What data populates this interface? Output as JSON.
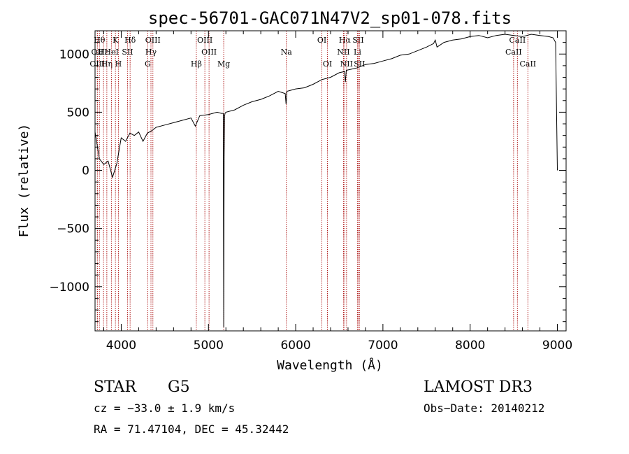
{
  "chart_data": {
    "type": "line",
    "title": "spec-56701-GAC071N47V2_sp01-078.fits",
    "xlabel": "Wavelength (Å)",
    "ylabel": "Flux (relative)",
    "xlim": [
      3700,
      9100
    ],
    "ylim": [
      -1380,
      1200
    ],
    "xticks": [
      4000,
      5000,
      6000,
      7000,
      8000,
      9000
    ],
    "xtick_labels": [
      "4000",
      "5000",
      "6000",
      "7000",
      "8000",
      "9000"
    ],
    "yticks": [
      -1000,
      -500,
      0,
      500,
      1000
    ],
    "ytick_labels": [
      "−1000",
      "−500",
      "0",
      "500",
      "1000"
    ],
    "line_color": "#000000",
    "marker_color": "#b22222",
    "spectrum": {
      "x": [
        3700,
        3750,
        3800,
        3850,
        3900,
        3950,
        4000,
        4050,
        4100,
        4150,
        4200,
        4250,
        4300,
        4350,
        4400,
        4500,
        4600,
        4700,
        4800,
        4850,
        4900,
        5000,
        5100,
        5150,
        5170,
        5175,
        5180,
        5185,
        5190,
        5200,
        5300,
        5400,
        5500,
        5600,
        5700,
        5800,
        5880,
        5890,
        5900,
        6000,
        6100,
        6200,
        6300,
        6400,
        6500,
        6560,
        6570,
        6580,
        6700,
        6800,
        6900,
        7000,
        7100,
        7200,
        7300,
        7400,
        7500,
        7580,
        7600,
        7620,
        7700,
        7800,
        7900,
        8000,
        8100,
        8200,
        8300,
        8400,
        8500,
        8600,
        8700,
        8800,
        8900,
        8950,
        8980,
        9000
      ],
      "y": [
        330,
        100,
        50,
        80,
        -60,
        60,
        280,
        250,
        320,
        300,
        330,
        250,
        320,
        340,
        370,
        390,
        410,
        430,
        450,
        380,
        470,
        480,
        500,
        490,
        490,
        -1350,
        100,
        470,
        490,
        500,
        520,
        560,
        590,
        610,
        640,
        680,
        660,
        570,
        680,
        700,
        710,
        740,
        780,
        800,
        840,
        850,
        760,
        860,
        880,
        910,
        920,
        940,
        960,
        990,
        1000,
        1030,
        1060,
        1090,
        1120,
        1060,
        1100,
        1120,
        1130,
        1150,
        1160,
        1140,
        1160,
        1170,
        1160,
        1150,
        1170,
        1160,
        1150,
        1140,
        1100,
        0
      ]
    },
    "line_markers": [
      {
        "wavelength": 3750,
        "label": "Hθ",
        "row": 1
      },
      {
        "wavelength": 3727,
        "label": "OII",
        "row": 2
      },
      {
        "wavelength": 3727,
        "label": "OIII",
        "row": 3
      },
      {
        "wavelength": 3797,
        "label": "Hε",
        "row": 2
      },
      {
        "wavelength": 3835,
        "label": "Hη",
        "row": 3
      },
      {
        "wavelength": 3934,
        "label": "K",
        "row": 1
      },
      {
        "wavelength": 3889,
        "label": "HeI",
        "row": 2
      },
      {
        "wavelength": 3968,
        "label": "H",
        "row": 3
      },
      {
        "wavelength": 4102,
        "label": "Hδ",
        "row": 1
      },
      {
        "wavelength": 4072,
        "label": "SII",
        "row": 2
      },
      {
        "wavelength": 4363,
        "label": "OIII",
        "row": 1
      },
      {
        "wavelength": 4341,
        "label": "Hγ",
        "row": 2
      },
      {
        "wavelength": 4304,
        "label": "G",
        "row": 3
      },
      {
        "wavelength": 4959,
        "label": "OIII",
        "row": 1
      },
      {
        "wavelength": 5007,
        "label": "OIII",
        "row": 2
      },
      {
        "wavelength": 4861,
        "label": "Hβ",
        "row": 3
      },
      {
        "wavelength": 5175,
        "label": "Mg",
        "row": 3
      },
      {
        "wavelength": 5893,
        "label": "Na",
        "row": 2
      },
      {
        "wavelength": 6300,
        "label": "OI",
        "row": 1
      },
      {
        "wavelength": 6364,
        "label": "OI",
        "row": 3
      },
      {
        "wavelength": 6563,
        "label": "Hα",
        "row": 1
      },
      {
        "wavelength": 6548,
        "label": "NII",
        "row": 2
      },
      {
        "wavelength": 6583,
        "label": "NII",
        "row": 3
      },
      {
        "wavelength": 6716,
        "label": "SII",
        "row": 1
      },
      {
        "wavelength": 6708,
        "label": "Li",
        "row": 2
      },
      {
        "wavelength": 6731,
        "label": "SII",
        "row": 3
      },
      {
        "wavelength": 8542,
        "label": "CaII",
        "row": 1
      },
      {
        "wavelength": 8498,
        "label": "CaII",
        "row": 2
      },
      {
        "wavelength": 8662,
        "label": "CaII",
        "row": 3
      }
    ]
  },
  "info": {
    "object_class": "STAR",
    "subclass": "G5",
    "survey": "LAMOST DR3",
    "cz": "cz = −33.0 ± 1.9 km/s",
    "obs_date": "Obs−Date: 20140212",
    "coords": "RA =  71.47104, DEC =  45.32442"
  }
}
